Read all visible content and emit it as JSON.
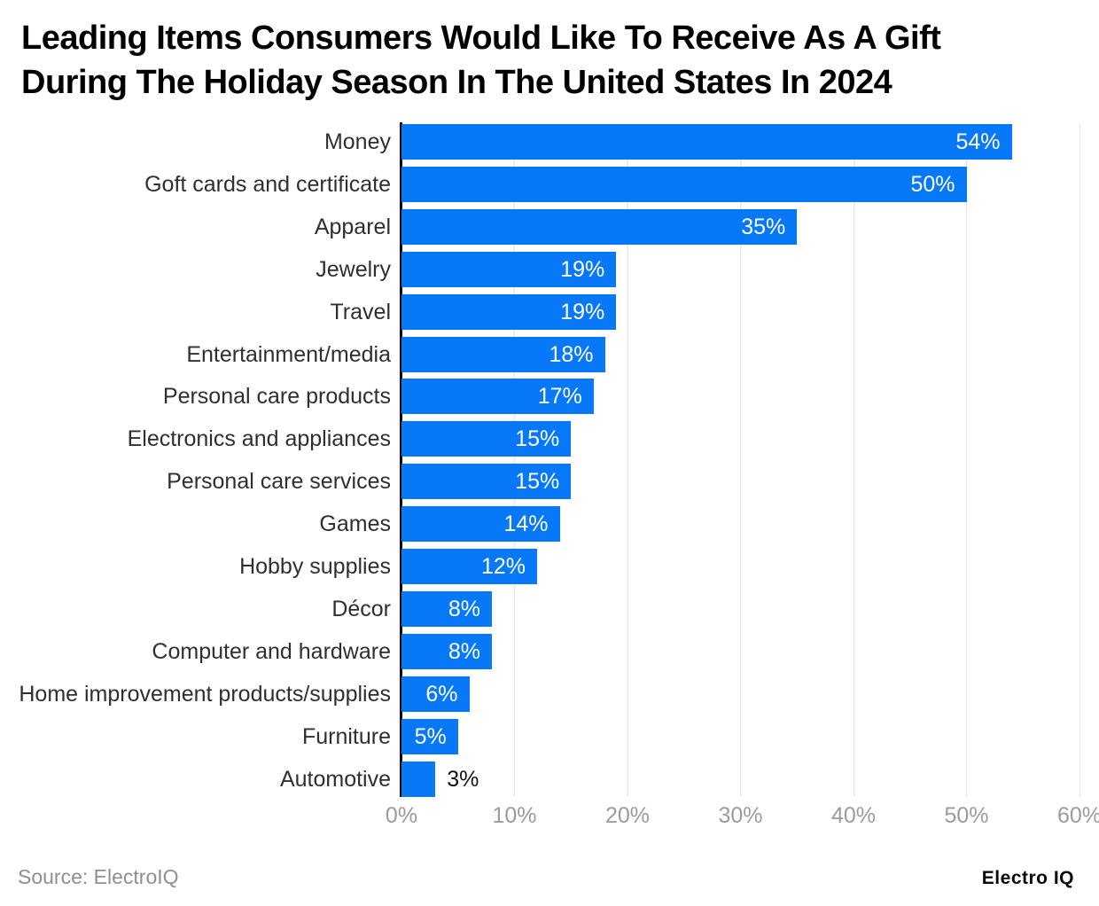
{
  "title_lines": [
    "Leading Items Consumers Would Like To Receive As A Gift",
    "During The Holiday Season In The United States In 2024"
  ],
  "source": "Source: ElectroIQ",
  "logo": "Electro IQ",
  "colors": {
    "background": "#ffffff",
    "bar": "#0778f8",
    "grid": "#e4e4e4",
    "axis": "#000000",
    "title": "#000000",
    "category_label": "#2f2f2f",
    "value_inside": "#ffffff",
    "value_outside": "#111111",
    "tick": "#9b9b9b",
    "source": "#8f8f8f",
    "logo": "#0a0a0a"
  },
  "chart_data": {
    "type": "bar",
    "orientation": "horizontal",
    "title": "Leading Items Consumers Would Like To Receive As A Gift During The Holiday Season In The United States In 2024",
    "categories": [
      "Money",
      "Goft cards and certificate",
      "Apparel",
      "Jewelry",
      "Travel",
      "Entertainment/media",
      "Personal care products",
      "Electronics and appliances",
      "Personal care services",
      "Games",
      "Hobby supplies",
      "Décor",
      "Computer and hardware",
      "Home improvement products/supplies",
      "Furniture",
      "Automotive"
    ],
    "values": [
      54,
      50,
      35,
      19,
      19,
      18,
      17,
      15,
      15,
      14,
      12,
      8,
      8,
      6,
      5,
      3
    ],
    "value_suffix": "%",
    "xlabel": "",
    "ylabel": "",
    "xlim": [
      0,
      60
    ],
    "xtick_step": 10,
    "xtick_labels": [
      "0%",
      "10%",
      "20%",
      "30%",
      "40%",
      "50%",
      "60%"
    ],
    "grid": true,
    "legend": false,
    "bar_labels": "inside-right (outside for smallest bar)"
  }
}
